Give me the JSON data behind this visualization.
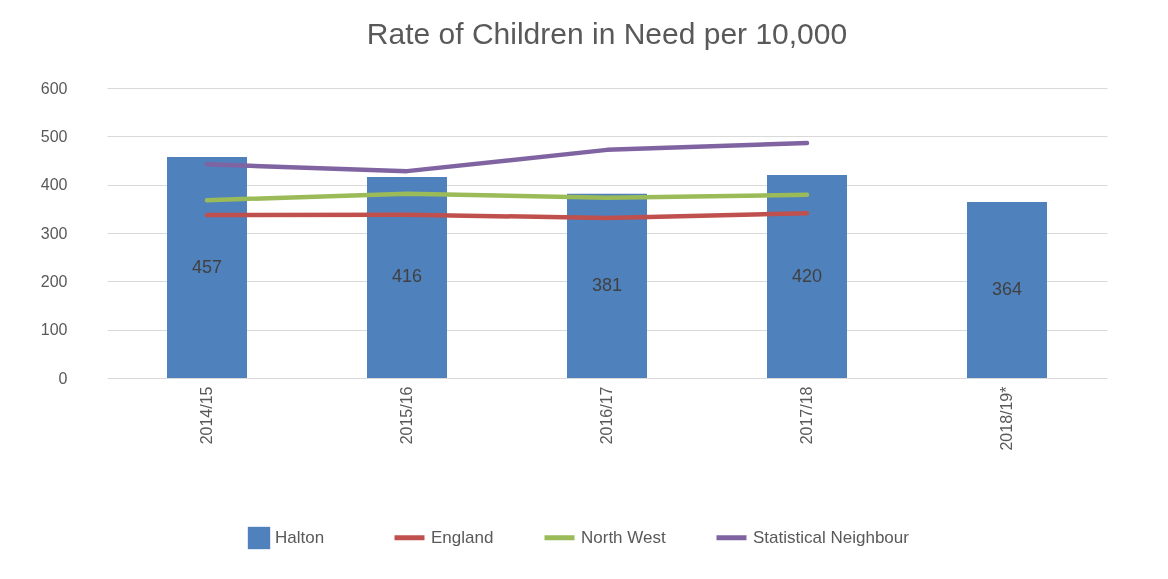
{
  "chart_data": {
    "type": "bar",
    "title": "Rate of Children in Need per 10,000",
    "categories": [
      "2014/15",
      "2015/16",
      "2016/17",
      "2017/18",
      "2018/19*"
    ],
    "series": [
      {
        "name": "Halton",
        "color": "#4f81bd",
        "values": [
          457,
          416,
          381,
          420,
          364
        ],
        "value_labels": [
          "457",
          "416",
          "381",
          "420",
          "364"
        ]
      },
      {
        "name": "England",
        "type": "line",
        "color": "#c0504d",
        "values": [
          337,
          338,
          331,
          341,
          null
        ]
      },
      {
        "name": "North West",
        "type": "line",
        "color": "#9bbb59",
        "values": [
          368,
          381,
          373,
          379,
          null
        ]
      },
      {
        "name": "Statistical Neighbour",
        "type": "line",
        "color": "#8064a2",
        "values": [
          442,
          428,
          472,
          486,
          null
        ]
      }
    ],
    "ylim": [
      0,
      600
    ],
    "yticks": [
      0,
      100,
      200,
      300,
      400,
      500,
      600
    ],
    "grid": "y",
    "legend": "bottom",
    "marker": "none",
    "line_style": "solid"
  }
}
